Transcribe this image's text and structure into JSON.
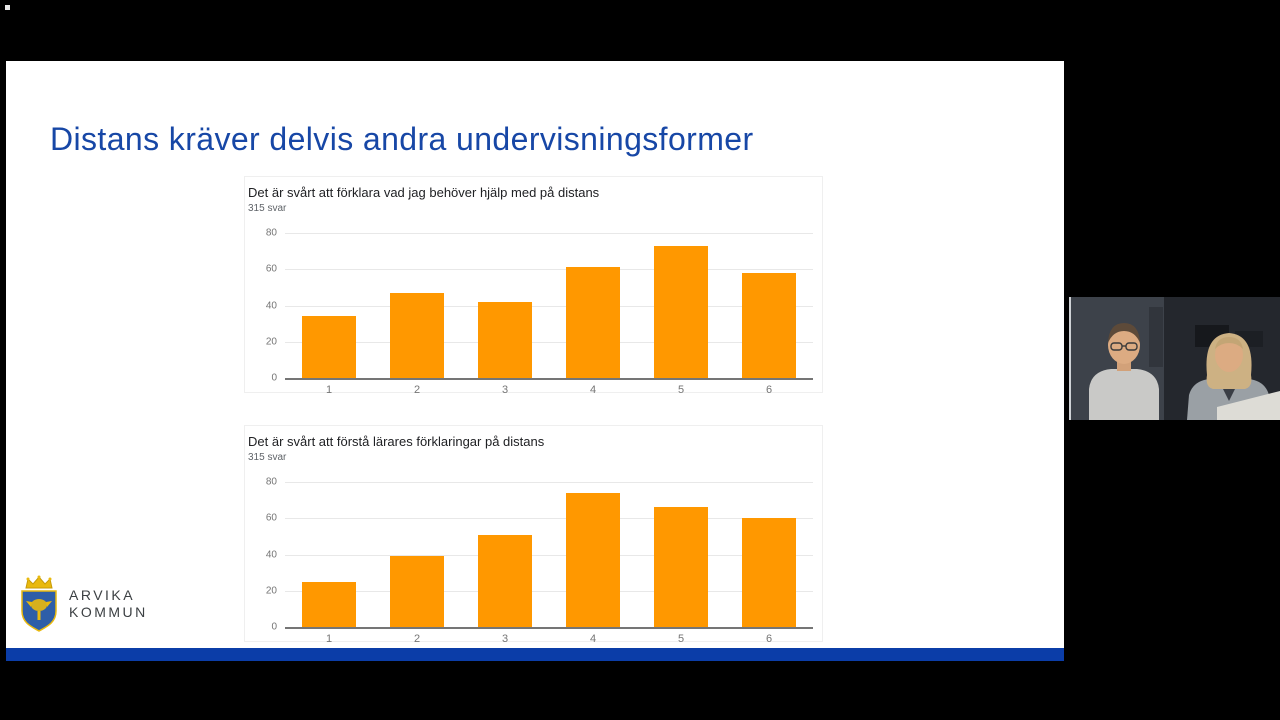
{
  "slide": {
    "title": "Distans kräver delvis andra undervisningsformer"
  },
  "logo": {
    "line1": "ARVIKA",
    "line2": "KOMMUN"
  },
  "colors": {
    "title_blue": "#1747a6",
    "bottom_strip": "#0b3da8",
    "bar_orange": "#FF9800"
  },
  "chart_data": [
    {
      "type": "bar",
      "title": "Det är svårt att förklara vad jag behöver hjälp med på distans",
      "subtitle": "315 svar",
      "categories": [
        "1",
        "2",
        "3",
        "4",
        "5",
        "6"
      ],
      "values": [
        34,
        47,
        42,
        61,
        73,
        58
      ],
      "ylim": [
        0,
        80
      ],
      "yticks": [
        0,
        20,
        40,
        60,
        80
      ],
      "grid": true,
      "legend": "none",
      "bar_color": "#FF9800"
    },
    {
      "type": "bar",
      "title": "Det är svårt att förstå lärares förklaringar på distans",
      "subtitle": "315 svar",
      "categories": [
        "1",
        "2",
        "3",
        "4",
        "5",
        "6"
      ],
      "values": [
        25,
        39,
        51,
        74,
        66,
        60
      ],
      "ylim": [
        0,
        80
      ],
      "yticks": [
        0,
        20,
        40,
        60,
        80
      ],
      "grid": true,
      "legend": "none",
      "bar_color": "#FF9800"
    }
  ]
}
